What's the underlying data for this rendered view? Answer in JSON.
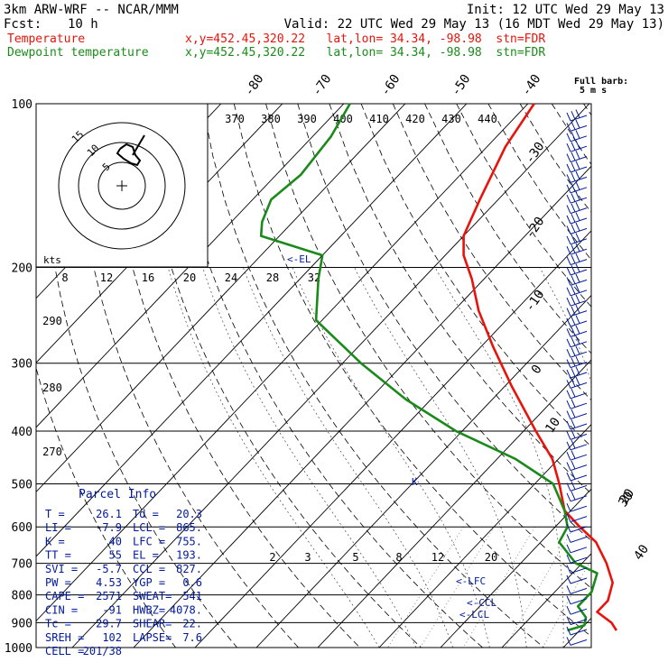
{
  "header": {
    "model": "3km ARW-WRF -- NCAR/MMM",
    "init": "Init: 12 UTC Wed 29 May 13",
    "fcst_label": "Fcst:",
    "fcst_value": "10 h",
    "valid": "Valid: 22 UTC Wed 29 May 13 (16 MDT Wed 29 May 13)",
    "temp_label": "Temperature",
    "temp_loc": "x,y=452.45,320.22   lat,lon= 34.34, -98.98  stn=FDR",
    "dew_label": "Dewpoint temperature",
    "dew_loc": "x,y=452.45,320.22   lat,lon= 34.34, -98.98  stn=FDR",
    "barb_key_1": "Full barb:",
    "barb_key_2": "5 m s"
  },
  "colors": {
    "temperature": "#e8140c",
    "dewpoint": "#1a8a1a",
    "text": "#000000",
    "label_blue": "#001a99"
  },
  "parcel_info": {
    "title": "Parcel Info",
    "rows": [
      [
        "T  =",
        "26.1",
        "Td =",
        "20.3"
      ],
      [
        "LI =",
        "-7.9",
        "LCL =",
        "865."
      ],
      [
        "K  =",
        "40",
        "LFC =",
        "755."
      ],
      [
        "TT =",
        "55",
        "EL  =",
        "193."
      ],
      [
        "SVI =",
        "-5.7",
        "CCL =",
        "827."
      ],
      [
        "PW =",
        "4.53",
        "YGP =",
        "0.6"
      ],
      [
        "CAPE =",
        "2571",
        "SWEAT=",
        "541"
      ],
      [
        "CIN =",
        "-91",
        "HWBZ=",
        "4078."
      ],
      [
        "Tc =",
        "29.7",
        "SHEAR=",
        "22."
      ],
      [
        "SREH =",
        "102",
        "LAPSE=",
        "7.6"
      ],
      [
        "CELL =",
        "201/38",
        "",
        ""
      ]
    ]
  },
  "level_labels": [
    "<-EL",
    "<-LFC",
    "<-CCL",
    "<-LCL"
  ],
  "hodograph": {
    "rings": [
      "5",
      "10",
      "15"
    ],
    "kts_label": "kts"
  },
  "chart_data": {
    "type": "line",
    "pressure_levels": [
      100,
      200,
      300,
      400,
      500,
      600,
      700,
      800,
      900,
      1000
    ],
    "isotherm_labels": [
      "-80",
      "-70",
      "-60",
      "-50",
      "-40",
      "-30",
      "-20",
      "-10",
      "0",
      "10",
      "20",
      "30",
      "40"
    ],
    "theta_labels_top": [
      "370",
      "380",
      "390",
      "400",
      "410",
      "420",
      "430",
      "440"
    ],
    "theta_labels_left": [
      "290",
      "280",
      "270"
    ],
    "mixing_ratio_labels_top": [
      "8",
      "12",
      "16",
      "20",
      "24",
      "28",
      "32"
    ],
    "mixing_ratio_labels_low": [
      "2",
      "3",
      "5",
      "8",
      "12",
      "20"
    ],
    "series": [
      {
        "name": "Temperature",
        "color": "#e8140c",
        "points": [
          [
            100,
            -69
          ],
          [
            120,
            -67
          ],
          [
            150,
            -63
          ],
          [
            175,
            -60
          ],
          [
            190,
            -57
          ],
          [
            210,
            -52
          ],
          [
            240,
            -46
          ],
          [
            280,
            -38
          ],
          [
            330,
            -29
          ],
          [
            400,
            -18
          ],
          [
            450,
            -11
          ],
          [
            500,
            -6
          ],
          [
            560,
            -1
          ],
          [
            600,
            4
          ],
          [
            640,
            9
          ],
          [
            700,
            14
          ],
          [
            760,
            18
          ],
          [
            820,
            20
          ],
          [
            860,
            20
          ],
          [
            900,
            24
          ],
          [
            930,
            26
          ]
        ]
      },
      {
        "name": "Dewpoint temperature",
        "color": "#1a8a1a",
        "points": [
          [
            100,
            -99
          ],
          [
            115,
            -97
          ],
          [
            135,
            -96
          ],
          [
            150,
            -97
          ],
          [
            165,
            -95
          ],
          [
            175,
            -93
          ],
          [
            190,
            -80
          ],
          [
            210,
            -77
          ],
          [
            250,
            -71
          ],
          [
            300,
            -57
          ],
          [
            350,
            -44
          ],
          [
            400,
            -31
          ],
          [
            450,
            -17
          ],
          [
            500,
            -7
          ],
          [
            560,
            -1
          ],
          [
            600,
            2
          ],
          [
            640,
            3
          ],
          [
            700,
            9
          ],
          [
            730,
            14
          ],
          [
            790,
            16
          ],
          [
            840,
            16
          ],
          [
            880,
            19
          ],
          [
            910,
            20
          ],
          [
            930,
            18
          ]
        ]
      }
    ]
  }
}
